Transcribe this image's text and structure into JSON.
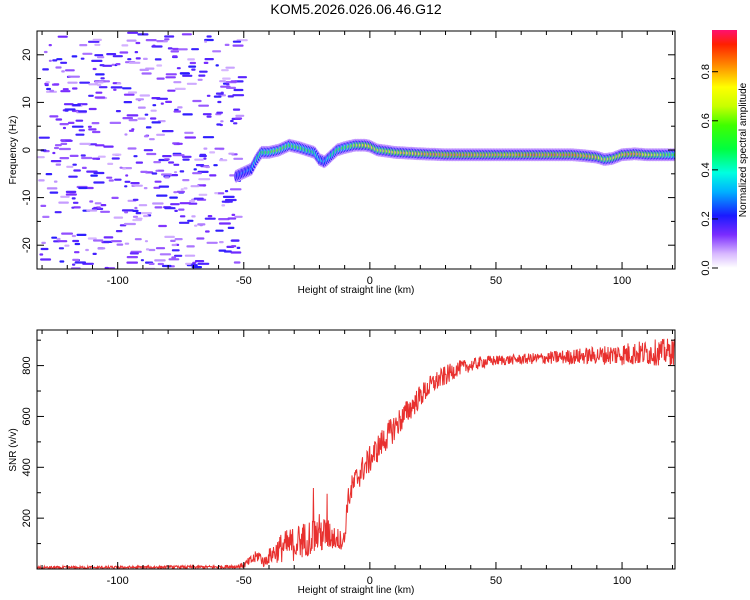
{
  "title": "KOM5.2026.026.06.46.G12",
  "chart_data": [
    {
      "type": "heatmap",
      "xlabel": "Height of straight line (km)",
      "ylabel": "Frequency (Hz)",
      "xlim": [
        -132,
        121
      ],
      "ylim": [
        -25,
        25
      ],
      "xticks": [
        -100,
        -50,
        0,
        50,
        100
      ],
      "xtick_labels": [
        "-100",
        "-50",
        "0",
        "50",
        "100"
      ],
      "yticks": [
        -20,
        -10,
        0,
        10,
        20
      ],
      "ytick_labels": [
        "-20",
        "-10",
        "0",
        "10",
        "20"
      ],
      "colorbar": {
        "label": "Normalized spectral amplitude",
        "range": [
          0,
          0.97
        ],
        "ticks": [
          0,
          0.2,
          0.4,
          0.6,
          0.8
        ],
        "tick_labels": [
          "0.0",
          "0.2",
          "0.4",
          "0.6",
          "0.8"
        ]
      },
      "noise_region": {
        "x_range": [
          -132,
          -52
        ],
        "f_range": [
          -25,
          25
        ],
        "amplitude": 0.15
      },
      "signal_track": {
        "x": [
          -53,
          -51,
          -49,
          -47,
          -45,
          -43,
          -40,
          -36,
          -32,
          -28,
          -25,
          -22,
          -20,
          -18,
          -16,
          -13,
          -10,
          -6,
          -2,
          0,
          3,
          6,
          10,
          20,
          30,
          40,
          50,
          60,
          70,
          80,
          85,
          90,
          93,
          96,
          100,
          105,
          110,
          121
        ],
        "freq": [
          -5.5,
          -5,
          -4.5,
          -4,
          -2,
          -0.5,
          -0.5,
          0,
          1,
          0.5,
          0,
          -0.5,
          -2,
          -2.5,
          -1.5,
          0,
          0.5,
          1,
          1,
          0.8,
          0,
          -0.2,
          -0.5,
          -0.8,
          -1,
          -1,
          -1,
          -1,
          -1,
          -1,
          -1.2,
          -1.5,
          -2,
          -1.8,
          -1,
          -0.8,
          -1,
          -1
        ],
        "amplitude": [
          0.25,
          0.3,
          0.3,
          0.35,
          0.45,
          0.55,
          0.6,
          0.65,
          0.6,
          0.6,
          0.55,
          0.5,
          0.4,
          0.35,
          0.45,
          0.55,
          0.6,
          0.7,
          0.8,
          0.85,
          0.7,
          0.75,
          0.8,
          0.85,
          0.9,
          0.9,
          0.85,
          0.9,
          0.9,
          0.9,
          0.88,
          0.85,
          0.7,
          0.75,
          0.85,
          0.9,
          0.8,
          0.6
        ]
      }
    },
    {
      "type": "line",
      "xlabel": "Height of straight line (km)",
      "ylabel": "SNR (v/v)",
      "xlim": [
        -132,
        121
      ],
      "ylim": [
        0,
        940
      ],
      "xticks": [
        -100,
        -50,
        0,
        50,
        100
      ],
      "xtick_labels": [
        "-100",
        "-50",
        "0",
        "50",
        "100"
      ],
      "yticks": [
        200,
        400,
        600,
        800
      ],
      "ytick_labels": [
        "200",
        "400",
        "600",
        "800"
      ],
      "line_color": "#e8302e",
      "series": [
        {
          "name": "SNR",
          "x": [
            -132,
            -100,
            -60,
            -52,
            -50,
            -46,
            -44,
            -42,
            -40,
            -35,
            -30,
            -25,
            -20,
            -15,
            -12,
            -10,
            -9,
            -7,
            -5,
            -3,
            0,
            5,
            10,
            15,
            20,
            25,
            30,
            35,
            40,
            45,
            50,
            60,
            70,
            80,
            90,
            100,
            110,
            121
          ],
          "y": [
            5,
            6,
            8,
            10,
            15,
            40,
            55,
            25,
            50,
            85,
            100,
            120,
            140,
            130,
            115,
            115,
            260,
            320,
            360,
            390,
            430,
            500,
            560,
            620,
            680,
            730,
            760,
            790,
            800,
            815,
            820,
            825,
            830,
            835,
            840,
            845,
            850,
            855
          ],
          "noise": [
            6,
            6,
            6,
            10,
            12,
            25,
            25,
            20,
            30,
            60,
            70,
            70,
            80,
            55,
            40,
            35,
            45,
            55,
            55,
            55,
            55,
            55,
            55,
            50,
            45,
            40,
            40,
            30,
            25,
            25,
            20,
            20,
            25,
            30,
            35,
            45,
            50,
            55
          ]
        }
      ]
    }
  ]
}
